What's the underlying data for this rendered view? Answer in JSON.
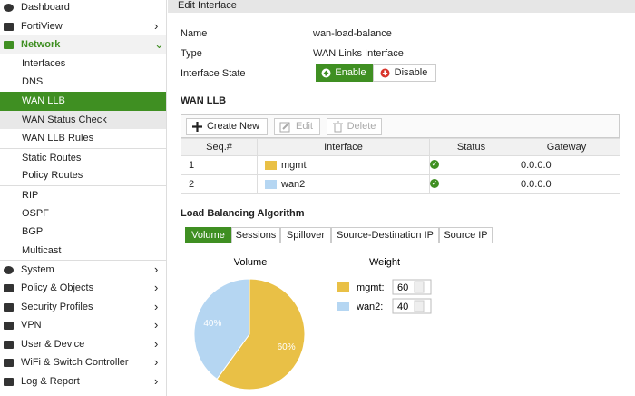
{
  "sidebar": {
    "items": [
      "Dashboard",
      "FortiView",
      "Network",
      "Interfaces",
      "DNS",
      "WAN LLB",
      "WAN Status Check",
      "WAN LLB Rules",
      "Static Routes",
      "Policy Routes",
      "RIP",
      "OSPF",
      "BGP",
      "Multicast",
      "System",
      "Policy & Objects",
      "Security Profiles",
      "VPN",
      "User & Device",
      "WiFi & Switch Controller",
      "Log & Report"
    ]
  },
  "header": {
    "title": "Edit Interface"
  },
  "fields": [
    {
      "label": "Name",
      "value": "wan-load-balance"
    },
    {
      "label": "Type",
      "value": "WAN Links Interface"
    },
    {
      "label": "Interface State"
    }
  ],
  "state_buttons": [
    "Enable",
    "Disable"
  ],
  "section_title": "WAN LLB",
  "toolbar": [
    "Create New",
    "Edit",
    "Delete"
  ],
  "table": {
    "columns": [
      "Seq.#",
      "Interface",
      "Status",
      "Gateway"
    ],
    "rows": [
      {
        "seq": 1,
        "interface": "mgmt",
        "gateway": "0.0.0.0"
      },
      {
        "seq": 2,
        "interface": "wan2",
        "gateway": "0.0.0.0"
      }
    ]
  },
  "algorithm": {
    "title": "Load Balancing Algorithm",
    "tabs": [
      "Volume",
      "Sessions",
      "Spillover",
      "Source-Destination IP",
      "Source IP"
    ]
  },
  "chart_data": {
    "type": "pie",
    "title": "Volume",
    "legend_title": "Weight",
    "categories": [
      "mgmt:",
      "wan2:"
    ],
    "values": [
      60,
      40
    ],
    "value_labels": [
      "60%",
      "40%"
    ],
    "colors": [
      "#e9c046",
      "#b5d6f2"
    ]
  }
}
